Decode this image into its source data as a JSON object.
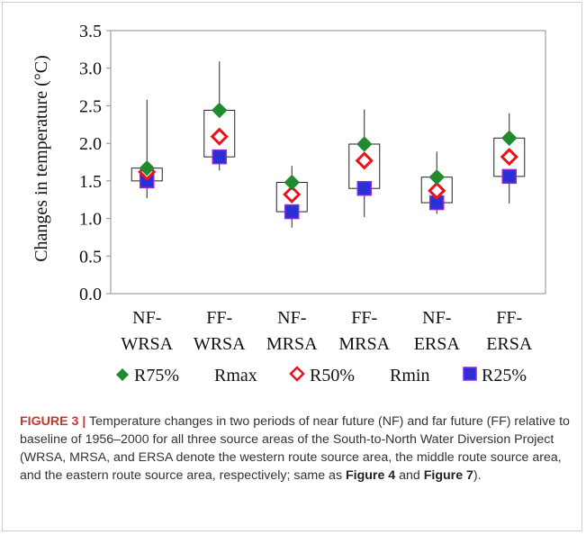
{
  "chart_data": {
    "type": "box",
    "ylabel": "Changes in temperature (°C)",
    "ylim": [
      0,
      3.5
    ],
    "yticks": [
      "0.0",
      "0.5",
      "1.0",
      "1.5",
      "2.0",
      "2.5",
      "3.0",
      "3.5"
    ],
    "categories": [
      {
        "line1": "NF-",
        "line2": "WRSA"
      },
      {
        "line1": "FF-",
        "line2": "WRSA"
      },
      {
        "line1": "NF-",
        "line2": "MRSA"
      },
      {
        "line1": "FF-",
        "line2": "MRSA"
      },
      {
        "line1": "NF-",
        "line2": "ERSA"
      },
      {
        "line1": "FF-",
        "line2": "ERSA"
      }
    ],
    "series": {
      "R75": [
        1.67,
        2.44,
        1.48,
        1.99,
        1.55,
        2.07
      ],
      "R50": [
        1.62,
        2.09,
        1.32,
        1.77,
        1.37,
        1.82
      ],
      "R25": [
        1.5,
        1.82,
        1.09,
        1.4,
        1.21,
        1.56
      ],
      "Rmax": [
        2.58,
        3.09,
        1.7,
        2.45,
        1.89,
        2.4
      ],
      "Rmin": [
        1.27,
        1.64,
        0.88,
        1.02,
        1.06,
        1.2
      ],
      "box_top": [
        1.67,
        2.44,
        1.48,
        1.99,
        1.55,
        2.07
      ],
      "box_bottom": [
        1.5,
        1.82,
        1.09,
        1.4,
        1.21,
        1.56
      ]
    },
    "legend": [
      {
        "key": "R75",
        "label": "R75%"
      },
      {
        "key": "Rmax",
        "label": "Rmax"
      },
      {
        "key": "R50",
        "label": "R50%"
      },
      {
        "key": "Rmin",
        "label": "Rmin"
      },
      {
        "key": "R25",
        "label": "R25%"
      }
    ],
    "colors": {
      "R75": "#1f8a2e",
      "R50": "#e8141c",
      "R25": "#2b2fd6",
      "R25_border": "#8a2be2"
    }
  },
  "caption": {
    "label": "FIGURE 3",
    "sep": "|",
    "text_a": " Temperature changes in two periods of near future (NF) and far future (FF) relative to baseline of 1956–2000 for all three source areas of the South-to-North Water Diversion Project (WRSA, MRSA, and ERSA denote the western route source area, the middle route source area, and the eastern route source area, respectively; same as ",
    "ref1": "Figure 4",
    "and": " and ",
    "ref2": "Figure 7",
    "end": ")."
  }
}
